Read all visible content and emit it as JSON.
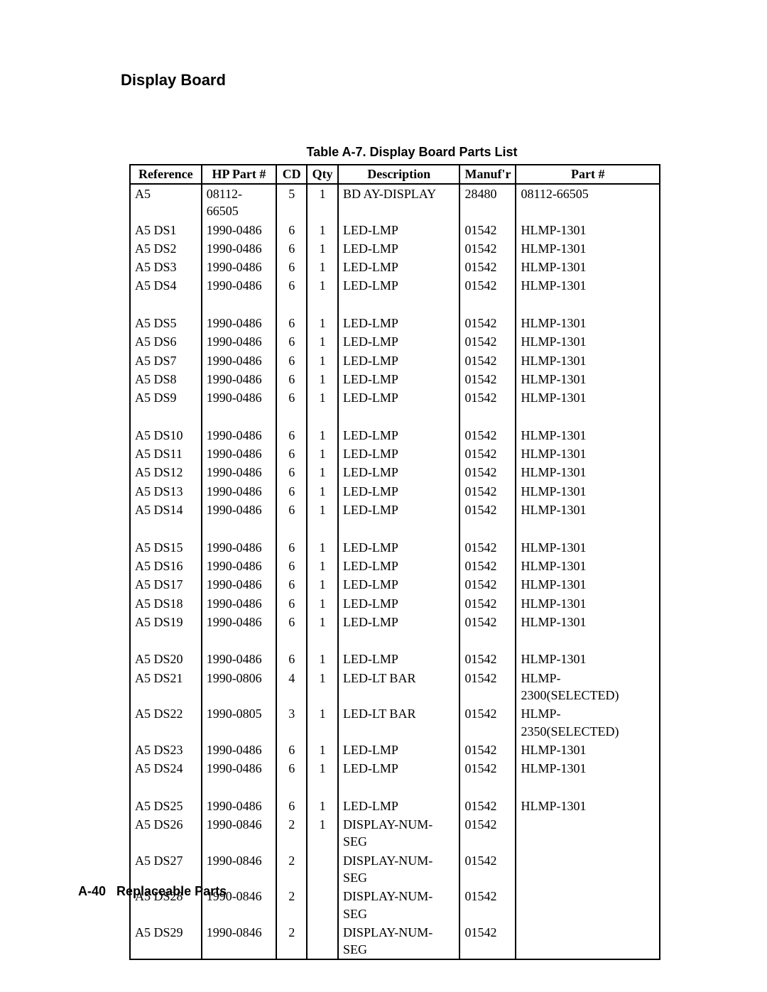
{
  "section_title": "Display Board",
  "table_caption": "Table A-7. Display Board Parts List",
  "columns": {
    "reference": "Reference",
    "hp_part": "HP Part #",
    "cd": "CD",
    "qty": "Qty",
    "description": "Description",
    "manufr": "Manuf'r",
    "part": "Part #"
  },
  "groups": [
    [
      {
        "ref": "A5",
        "hp": "08112-66505",
        "cd": "5",
        "qty": "1",
        "desc": "BD AY-DISPLAY",
        "mfr": "28480",
        "part": "08112-66505"
      },
      {
        "ref": "A5 DS1",
        "hp": "1990-0486",
        "cd": "6",
        "qty": "1",
        "desc": "LED-LMP",
        "mfr": "01542",
        "part": "HLMP-1301"
      },
      {
        "ref": "A5 DS2",
        "hp": "1990-0486",
        "cd": "6",
        "qty": "1",
        "desc": "LED-LMP",
        "mfr": "01542",
        "part": "HLMP-1301"
      },
      {
        "ref": "A5 DS3",
        "hp": "1990-0486",
        "cd": "6",
        "qty": "1",
        "desc": "LED-LMP",
        "mfr": "01542",
        "part": "HLMP-1301"
      },
      {
        "ref": "A5 DS4",
        "hp": "1990-0486",
        "cd": "6",
        "qty": "1",
        "desc": "LED-LMP",
        "mfr": "01542",
        "part": "HLMP-1301"
      }
    ],
    [
      {
        "ref": "A5 DS5",
        "hp": "1990-0486",
        "cd": "6",
        "qty": "1",
        "desc": "LED-LMP",
        "mfr": "01542",
        "part": "HLMP-1301"
      },
      {
        "ref": "A5 DS6",
        "hp": "1990-0486",
        "cd": "6",
        "qty": "1",
        "desc": "LED-LMP",
        "mfr": "01542",
        "part": "HLMP-1301"
      },
      {
        "ref": "A5 DS7",
        "hp": "1990-0486",
        "cd": "6",
        "qty": "1",
        "desc": "LED-LMP",
        "mfr": "01542",
        "part": "HLMP-1301"
      },
      {
        "ref": "A5 DS8",
        "hp": "1990-0486",
        "cd": "6",
        "qty": "1",
        "desc": "LED-LMP",
        "mfr": "01542",
        "part": "HLMP-1301"
      },
      {
        "ref": "A5 DS9",
        "hp": "1990-0486",
        "cd": "6",
        "qty": "1",
        "desc": "LED-LMP",
        "mfr": "01542",
        "part": "HLMP-1301"
      }
    ],
    [
      {
        "ref": "A5 DS10",
        "hp": "1990-0486",
        "cd": "6",
        "qty": "1",
        "desc": "LED-LMP",
        "mfr": "01542",
        "part": "HLMP-1301"
      },
      {
        "ref": "A5 DS11",
        "hp": "1990-0486",
        "cd": "6",
        "qty": "1",
        "desc": "LED-LMP",
        "mfr": "01542",
        "part": "HLMP-1301"
      },
      {
        "ref": "A5 DS12",
        "hp": "1990-0486",
        "cd": "6",
        "qty": "1",
        "desc": "LED-LMP",
        "mfr": "01542",
        "part": "HLMP-1301"
      },
      {
        "ref": "A5 DS13",
        "hp": "1990-0486",
        "cd": "6",
        "qty": "1",
        "desc": "LED-LMP",
        "mfr": "01542",
        "part": "HLMP-1301"
      },
      {
        "ref": "A5 DS14",
        "hp": "1990-0486",
        "cd": "6",
        "qty": "1",
        "desc": "LED-LMP",
        "mfr": "01542",
        "part": "HLMP-1301"
      }
    ],
    [
      {
        "ref": "A5 DS15",
        "hp": "1990-0486",
        "cd": "6",
        "qty": "1",
        "desc": "LED-LMP",
        "mfr": "01542",
        "part": "HLMP-1301"
      },
      {
        "ref": "A5 DS16",
        "hp": "1990-0486",
        "cd": "6",
        "qty": "1",
        "desc": "LED-LMP",
        "mfr": "01542",
        "part": "HLMP-1301"
      },
      {
        "ref": "A5 DS17",
        "hp": "1990-0486",
        "cd": "6",
        "qty": "1",
        "desc": "LED-LMP",
        "mfr": "01542",
        "part": "HLMP-1301"
      },
      {
        "ref": "A5 DS18",
        "hp": "1990-0486",
        "cd": "6",
        "qty": "1",
        "desc": "LED-LMP",
        "mfr": "01542",
        "part": "HLMP-1301"
      },
      {
        "ref": "A5 DS19",
        "hp": "1990-0486",
        "cd": "6",
        "qty": "1",
        "desc": "LED-LMP",
        "mfr": "01542",
        "part": "HLMP-1301"
      }
    ],
    [
      {
        "ref": "A5 DS20",
        "hp": "1990-0486",
        "cd": "6",
        "qty": "1",
        "desc": "LED-LMP",
        "mfr": "01542",
        "part": "HLMP-1301"
      },
      {
        "ref": "A5 DS21",
        "hp": "1990-0806",
        "cd": "4",
        "qty": "1",
        "desc": "LED-LT BAR",
        "mfr": "01542",
        "part": "HLMP-2300(SELECTED)"
      },
      {
        "ref": "A5 DS22",
        "hp": "1990-0805",
        "cd": "3",
        "qty": "1",
        "desc": "LED-LT BAR",
        "mfr": "01542",
        "part": "HLMP-2350(SELECTED)"
      },
      {
        "ref": "A5 DS23",
        "hp": "1990-0486",
        "cd": "6",
        "qty": "1",
        "desc": "LED-LMP",
        "mfr": "01542",
        "part": "HLMP-1301"
      },
      {
        "ref": "A5 DS24",
        "hp": "1990-0486",
        "cd": "6",
        "qty": "1",
        "desc": "LED-LMP",
        "mfr": "01542",
        "part": "HLMP-1301"
      }
    ],
    [
      {
        "ref": "A5 DS25",
        "hp": "1990-0486",
        "cd": "6",
        "qty": "1",
        "desc": "LED-LMP",
        "mfr": "01542",
        "part": "HLMP-1301"
      },
      {
        "ref": "A5 DS26",
        "hp": "1990-0846",
        "cd": "2",
        "qty": "1",
        "desc": "DISPLAY-NUM-SEG",
        "mfr": "01542",
        "part": ""
      },
      {
        "ref": "A5 DS27",
        "hp": "1990-0846",
        "cd": "2",
        "qty": "",
        "desc": "DISPLAY-NUM-SEG",
        "mfr": "01542",
        "part": ""
      },
      {
        "ref": "A5 DS28",
        "hp": "1990-0846",
        "cd": "2",
        "qty": "",
        "desc": "DISPLAY-NUM-SEG",
        "mfr": "01542",
        "part": ""
      },
      {
        "ref": "A5 DS29",
        "hp": "1990-0846",
        "cd": "2",
        "qty": "",
        "desc": "DISPLAY-NUM-SEG",
        "mfr": "01542",
        "part": ""
      }
    ]
  ],
  "footer": {
    "page": "A-40",
    "label": "Replaceable Parts"
  }
}
